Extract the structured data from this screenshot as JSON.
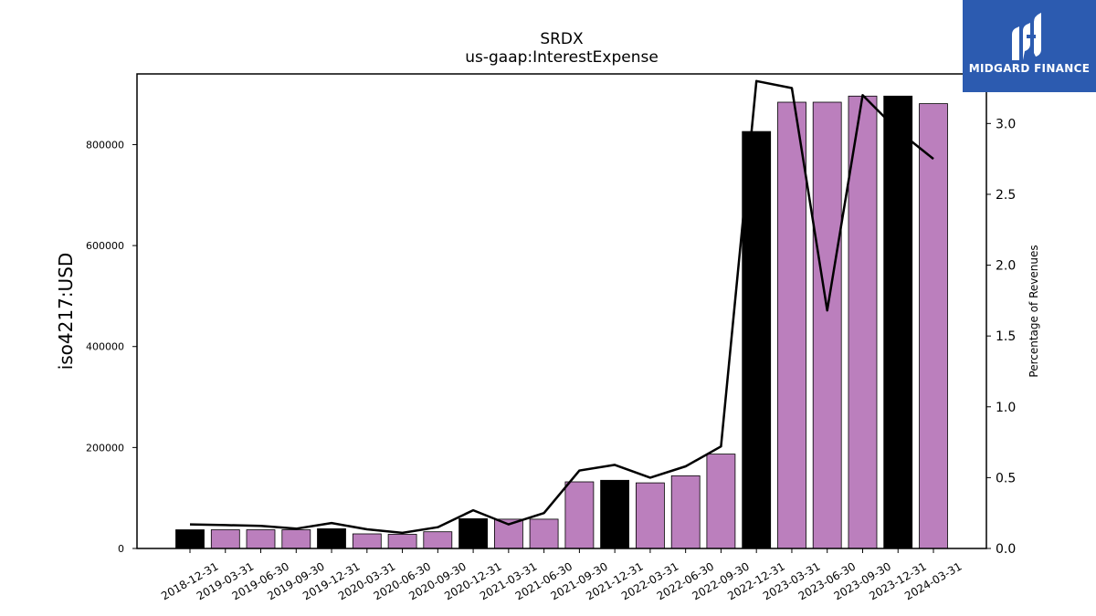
{
  "chart_data": {
    "type": "bar",
    "title": "SRDX",
    "subtitle": "us-gaap:InterestExpense",
    "ylabel": "iso4217:USD",
    "y2label": "Percentage of Revenues",
    "ylim": [
      0,
      940000
    ],
    "y2lim": [
      0,
      3.35
    ],
    "yticks": [
      0,
      200000,
      400000,
      600000,
      800000
    ],
    "ytick_labels": [
      "0",
      "200000",
      "400000",
      "600000",
      "800000"
    ],
    "y2ticks": [
      0,
      0.5,
      1.0,
      1.5,
      2.0,
      2.5,
      3.0
    ],
    "y2tick_labels": [
      "0.0",
      "0.5",
      "1.0",
      "1.5",
      "2.0",
      "2.5",
      "3.0"
    ],
    "categories": [
      "2018-12-31",
      "2019-03-31",
      "2019-06-30",
      "2019-09-30",
      "2019-12-31",
      "2020-03-31",
      "2020-06-30",
      "2020-09-30",
      "2020-12-31",
      "2021-03-31",
      "2021-06-30",
      "2021-09-30",
      "2021-12-31",
      "2022-03-31",
      "2022-06-30",
      "2022-09-30",
      "2022-12-31",
      "2023-03-31",
      "2023-06-30",
      "2023-09-30",
      "2023-12-31",
      "2024-03-31"
    ],
    "series": [
      {
        "kind": "bar",
        "values": [
          37000,
          37000,
          37000,
          37000,
          39000,
          29000,
          28000,
          33000,
          59000,
          58000,
          58000,
          132000,
          135000,
          130000,
          144000,
          187000,
          826000,
          884000,
          884000,
          896000,
          896000,
          881000
        ],
        "bar_colors": [
          "#000000",
          "#bb7fbd",
          "#bb7fbd",
          "#bb7fbd",
          "#000000",
          "#bb7fbd",
          "#bb7fbd",
          "#bb7fbd",
          "#000000",
          "#bb7fbd",
          "#bb7fbd",
          "#bb7fbd",
          "#000000",
          "#bb7fbd",
          "#bb7fbd",
          "#bb7fbd",
          "#000000",
          "#bb7fbd",
          "#bb7fbd",
          "#bb7fbd",
          "#000000",
          "#bb7fbd"
        ]
      },
      {
        "kind": "line",
        "axis": "right",
        "values": [
          0.17,
          0.165,
          0.16,
          0.14,
          0.18,
          0.135,
          0.11,
          0.15,
          0.27,
          0.17,
          0.25,
          0.55,
          0.59,
          0.5,
          0.58,
          0.72,
          3.3,
          3.25,
          1.68,
          3.2,
          2.95,
          2.75
        ],
        "color": "#000000"
      }
    ]
  },
  "logo": {
    "text": "MIDGARD FINANCE",
    "bg_color": "#2c5bb0"
  }
}
